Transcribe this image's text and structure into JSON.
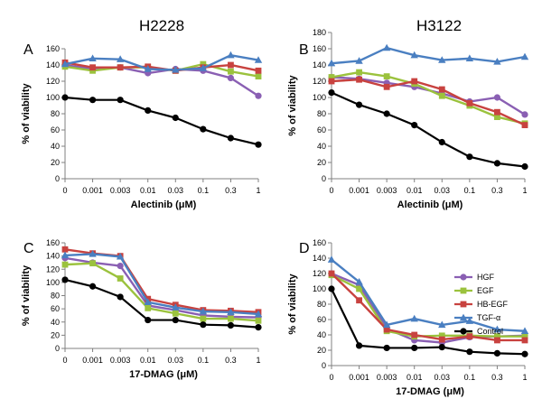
{
  "column_titles": [
    "H2228",
    "H3122"
  ],
  "x_categories": [
    "0",
    "0.001",
    "0.003",
    "0.01",
    "0.03",
    "0.1",
    "0.3",
    "1"
  ],
  "colors": {
    "HGF": "#8a5fb3",
    "EGF": "#9bc23d",
    "HB-EGF": "#c8423f",
    "TGF-α": "#4a7fc1",
    "Control": "#000000"
  },
  "legend": {
    "entries": [
      "HGF",
      "EGF",
      "HB-EGF",
      "TGF-α",
      "Control"
    ]
  },
  "chart_data": [
    {
      "panel": "A",
      "cell_line": "H2228",
      "type": "line",
      "xlabel": "Alectinib (μM)",
      "ylabel": "% of viability",
      "ylim": [
        0,
        160
      ],
      "yticks": [
        "0",
        "20",
        "40",
        "60",
        "80",
        "100",
        "120",
        "140",
        "160"
      ],
      "series": [
        {
          "name": "HGF",
          "values": [
            140,
            135,
            137,
            130,
            135,
            133,
            124,
            102
          ]
        },
        {
          "name": "EGF",
          "values": [
            138,
            133,
            137,
            137,
            133,
            141,
            132,
            126
          ]
        },
        {
          "name": "HB-EGF",
          "values": [
            143,
            137,
            137,
            138,
            133,
            137,
            140,
            133
          ]
        },
        {
          "name": "TGF-α",
          "values": [
            141,
            148,
            147,
            135,
            134,
            136,
            152,
            146
          ]
        },
        {
          "name": "Control",
          "values": [
            100,
            97,
            97,
            84,
            75,
            61,
            50,
            42
          ]
        }
      ]
    },
    {
      "panel": "B",
      "cell_line": "H3122",
      "type": "line",
      "xlabel": "Alectinib (μM)",
      "ylabel": "% of viability",
      "ylim": [
        0,
        180
      ],
      "yticks": [
        "0",
        "20",
        "40",
        "60",
        "80",
        "100",
        "120",
        "140",
        "160",
        "180"
      ],
      "series": [
        {
          "name": "HGF",
          "values": [
            125,
            123,
            118,
            113,
            105,
            95,
            100,
            79
          ]
        },
        {
          "name": "EGF",
          "values": [
            125,
            131,
            126,
            117,
            102,
            90,
            76,
            68
          ]
        },
        {
          "name": "HB-EGF",
          "values": [
            120,
            122,
            113,
            120,
            110,
            93,
            82,
            66
          ]
        },
        {
          "name": "TGF-α",
          "values": [
            142,
            145,
            161,
            152,
            146,
            148,
            144,
            150
          ]
        },
        {
          "name": "Control",
          "values": [
            106,
            91,
            80,
            66,
            45,
            27,
            19,
            15
          ]
        }
      ]
    },
    {
      "panel": "C",
      "cell_line": "H2228",
      "type": "line",
      "xlabel": "17-DMAG (μM)",
      "ylabel": "% of viability",
      "ylim": [
        0,
        160
      ],
      "yticks": [
        "0",
        "20",
        "40",
        "60",
        "80",
        "100",
        "120",
        "140",
        "160"
      ],
      "series": [
        {
          "name": "HGF",
          "values": [
            137,
            130,
            125,
            65,
            58,
            50,
            48,
            47
          ]
        },
        {
          "name": "EGF",
          "values": [
            127,
            129,
            106,
            61,
            53,
            45,
            45,
            42
          ]
        },
        {
          "name": "HB-EGF",
          "values": [
            150,
            144,
            140,
            75,
            66,
            58,
            57,
            55
          ]
        },
        {
          "name": "TGF-α",
          "values": [
            141,
            143,
            139,
            70,
            62,
            56,
            55,
            52
          ]
        },
        {
          "name": "Control",
          "values": [
            104,
            94,
            78,
            43,
            43,
            36,
            35,
            32
          ]
        }
      ]
    },
    {
      "panel": "D",
      "cell_line": "H3122",
      "type": "line",
      "xlabel": "17-DMAG (μM)",
      "ylabel": "% of viability",
      "ylim": [
        0,
        160
      ],
      "yticks": [
        "0",
        "20",
        "40",
        "60",
        "80",
        "100",
        "120",
        "140",
        "160"
      ],
      "series": [
        {
          "name": "HGF",
          "values": [
            120,
            105,
            48,
            33,
            30,
            37,
            38,
            39
          ]
        },
        {
          "name": "EGF",
          "values": [
            118,
            100,
            45,
            38,
            39,
            39,
            38,
            38
          ]
        },
        {
          "name": "HB-EGF",
          "values": [
            120,
            85,
            47,
            40,
            34,
            38,
            33,
            33
          ]
        },
        {
          "name": "TGF-α",
          "values": [
            138,
            109,
            53,
            61,
            53,
            58,
            47,
            45
          ]
        },
        {
          "name": "Control",
          "values": [
            100,
            26,
            23,
            23,
            24,
            18,
            16,
            15
          ]
        }
      ]
    }
  ]
}
